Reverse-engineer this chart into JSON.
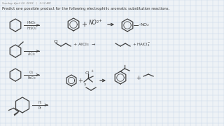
{
  "bg_color": "#eef2f6",
  "grid_color": "#c8d8e8",
  "line_color": "#404040",
  "label_color": "#505050",
  "header": "Sunday, April 22, 2018   |   3:12 AM",
  "title": "Predict one possible product for the following electrophilic aromatic substitution reactions.",
  "row1_left_reagent_top": "HNO₃",
  "row1_left_reagent_bot": "H₂SO₄",
  "row1_nitro": "NO₂",
  "row2_reagent": "AlCl₃",
  "row2_product_label": "+HAlCl₄⁻",
  "row3_reagent_top": "Cl₂",
  "row3_reagent_bot": "FeCl₃",
  "row4_reagent_top": "H₂",
  "row4_reagent_bot": "Pt"
}
